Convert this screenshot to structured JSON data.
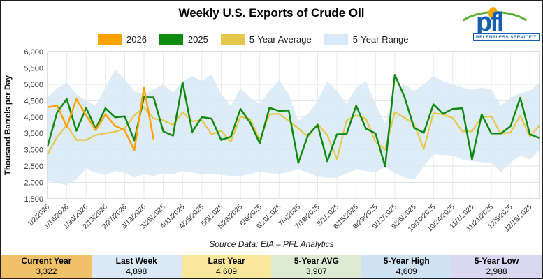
{
  "window_title": "Weekly U.S. Exports of Crude Oil",
  "logo": {
    "text": "pfl",
    "tagline": "RELENTLESS SERVICE™",
    "brand_blue": "#155FAE",
    "brand_green": "#5BB033",
    "brand_orange": "#F5A800"
  },
  "legend": [
    {
      "label": "2026",
      "color": "#FFA200"
    },
    {
      "label": "2025",
      "color": "#0E8A0E"
    },
    {
      "label": "5-Year Average",
      "color": "#E5C84A"
    },
    {
      "label": "5-Year Range",
      "color": "#D8E9F7"
    }
  ],
  "source_note": "Source Data: EIA – PFL Analytics",
  "stats": [
    {
      "label": "Current Year",
      "value": "3,322",
      "bg": "#F1C169"
    },
    {
      "label": "Last Week",
      "value": "4,898",
      "bg": "#DBE9F7"
    },
    {
      "label": "Last Year",
      "value": "4,609",
      "bg": "#F9E89B"
    },
    {
      "label": "5-Year AVG",
      "value": "3,907",
      "bg": "#DDEBD3"
    },
    {
      "label": "5-Year High",
      "value": "4,609",
      "bg": "#CFE2F2"
    },
    {
      "label": "5-Year Low",
      "value": "2,988",
      "bg": "#D9D8F0"
    }
  ],
  "chart_data": {
    "type": "line",
    "title": "Weekly U.S. Exports of Crude Oil",
    "xlabel": "",
    "ylabel": "Thousand Barrels per Day",
    "ylim": [
      1500,
      6000
    ],
    "ytick_step": 500,
    "ytick_labels": [
      "6,000",
      "5,500",
      "5,000",
      "4,500",
      "4,000",
      "3,500",
      "3,000",
      "2,500",
      "2,000",
      "1,500"
    ],
    "grid": true,
    "legend_position": "top",
    "weeks": 52,
    "x_tick_labels": [
      "1/2/2026",
      "1/16/2026",
      "1/30/2026",
      "2/13/2026",
      "2/27/2026",
      "3/13/2026",
      "3/28/2025",
      "4/11/2025",
      "4/25/2025",
      "5/9/2025",
      "5/23/2025",
      "6/6/2025",
      "6/20/2025",
      "7/4/2025",
      "7/18/2025",
      "8/1/2025",
      "8/15/2025",
      "8/29/2025",
      "9/12/2025",
      "9/26/2025",
      "10/10/2025",
      "10/24/2025",
      "11/7/2025",
      "11/21/2025",
      "12/5/2025",
      "12/19/2025"
    ],
    "band": {
      "name": "5-Year Range",
      "color": "#D8E9F7",
      "upper": [
        4600,
        4880,
        5050,
        4700,
        4500,
        4350,
        4900,
        5450,
        5150,
        4800,
        4700,
        4850,
        5000,
        4750,
        5100,
        5250,
        5100,
        5310,
        4700,
        4340,
        4880,
        4600,
        4400,
        4800,
        5130,
        4700,
        3900,
        4100,
        4500,
        5100,
        4800,
        4400,
        4900,
        5100,
        4400,
        3800,
        4840,
        5000,
        4800,
        5000,
        5255,
        5100,
        5000,
        4900,
        4840,
        4900,
        4840,
        4350,
        4600,
        4725,
        4800,
        5050
      ],
      "lower": [
        2050,
        1990,
        1910,
        2100,
        2420,
        2300,
        2230,
        2350,
        2300,
        2150,
        2250,
        2200,
        2280,
        2250,
        2350,
        2300,
        2250,
        2275,
        2230,
        2200,
        2190,
        2260,
        2330,
        2290,
        2260,
        2320,
        2400,
        2300,
        2175,
        2150,
        2140,
        2270,
        2400,
        2350,
        2315,
        2480,
        2280,
        2150,
        2080,
        2500,
        2860,
        2840,
        2825,
        2700,
        2650,
        2620,
        2600,
        2310,
        2610,
        2825,
        2700,
        2988
      ]
    },
    "series": [
      {
        "name": "5-Year Average",
        "color": "#E5C84A",
        "width": 2.2,
        "values": [
          2850,
          3400,
          3750,
          3300,
          3300,
          3450,
          3500,
          3550,
          3650,
          4050,
          4300,
          3950,
          3900,
          3760,
          4150,
          3870,
          3900,
          3480,
          3580,
          3250,
          4010,
          3940,
          3300,
          4090,
          4100,
          3880,
          3650,
          3400,
          3780,
          3450,
          2720,
          3900,
          4050,
          3950,
          3250,
          3000,
          4150,
          3980,
          3790,
          3020,
          4120,
          4080,
          3970,
          3560,
          3560,
          3990,
          4020,
          3490,
          3530,
          4040,
          3410,
          3750
        ]
      },
      {
        "name": "2025",
        "color": "#0E8A0E",
        "width": 2.5,
        "values": [
          3100,
          4150,
          4550,
          3580,
          4280,
          3640,
          4270,
          3990,
          4020,
          3290,
          4609,
          4600,
          3560,
          3430,
          5060,
          3550,
          4000,
          3950,
          3300,
          3400,
          4250,
          3830,
          3200,
          4280,
          4190,
          4200,
          2600,
          3450,
          3760,
          2650,
          3470,
          3480,
          4350,
          3650,
          3500,
          2490,
          5290,
          4620,
          3670,
          3520,
          4390,
          4100,
          4250,
          4270,
          2700,
          4080,
          3500,
          3500,
          3720,
          4590,
          3470,
          3360
        ]
      },
      {
        "name": "2026",
        "color": "#FFA200",
        "width": 2.5,
        "values": [
          4300,
          4350,
          3700,
          4550,
          4050,
          3600,
          4080,
          3730,
          3600,
          2980,
          4898,
          3322
        ]
      }
    ]
  }
}
